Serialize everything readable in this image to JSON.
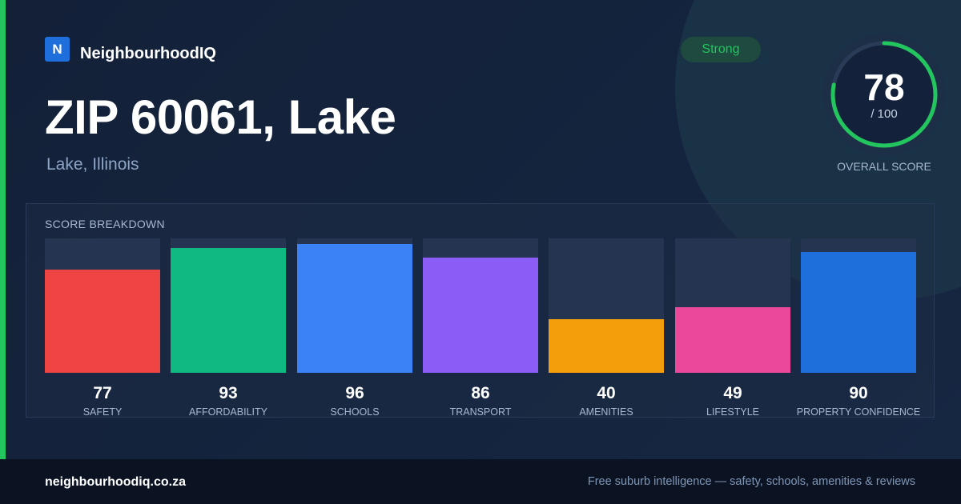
{
  "brand": {
    "logo_letter": "N",
    "name": "NeighbourhoodIQ"
  },
  "location": {
    "title": "ZIP 60061, Lake",
    "subtitle": "Lake, Illinois"
  },
  "badge": {
    "label": "Strong",
    "color": "#22c55e"
  },
  "overall": {
    "score": "78",
    "max": "/ 100",
    "label": "OVERALL SCORE",
    "value": 78,
    "out_of": 100,
    "color": "#22c55e"
  },
  "breakdown": {
    "title": "SCORE BREAKDOWN",
    "items": [
      {
        "label": "SAFETY",
        "value": 77,
        "color": "#ef4444"
      },
      {
        "label": "AFFORDABILITY",
        "value": 93,
        "color": "#10b981"
      },
      {
        "label": "SCHOOLS",
        "value": 96,
        "color": "#3b82f6"
      },
      {
        "label": "TRANSPORT",
        "value": 86,
        "color": "#8b5cf6"
      },
      {
        "label": "AMENITIES",
        "value": 40,
        "color": "#f59e0b"
      },
      {
        "label": "LIFESTYLE",
        "value": 49,
        "color": "#ec4899"
      },
      {
        "label": "PROPERTY CONFIDENCE",
        "value": 90,
        "color": "#1e6fdc"
      }
    ]
  },
  "chart_data": {
    "type": "bar",
    "categories": [
      "SAFETY",
      "AFFORDABILITY",
      "SCHOOLS",
      "TRANSPORT",
      "AMENITIES",
      "LIFESTYLE",
      "PROPERTY CONFIDENCE"
    ],
    "values": [
      77,
      93,
      96,
      86,
      40,
      49,
      90
    ],
    "title": "SCORE BREAKDOWN",
    "xlabel": "",
    "ylabel": "",
    "ylim": [
      0,
      100
    ]
  },
  "footer": {
    "site": "neighbourhoodiq.co.za",
    "tagline": "Free suburb intelligence — safety, schools, amenities & reviews"
  }
}
